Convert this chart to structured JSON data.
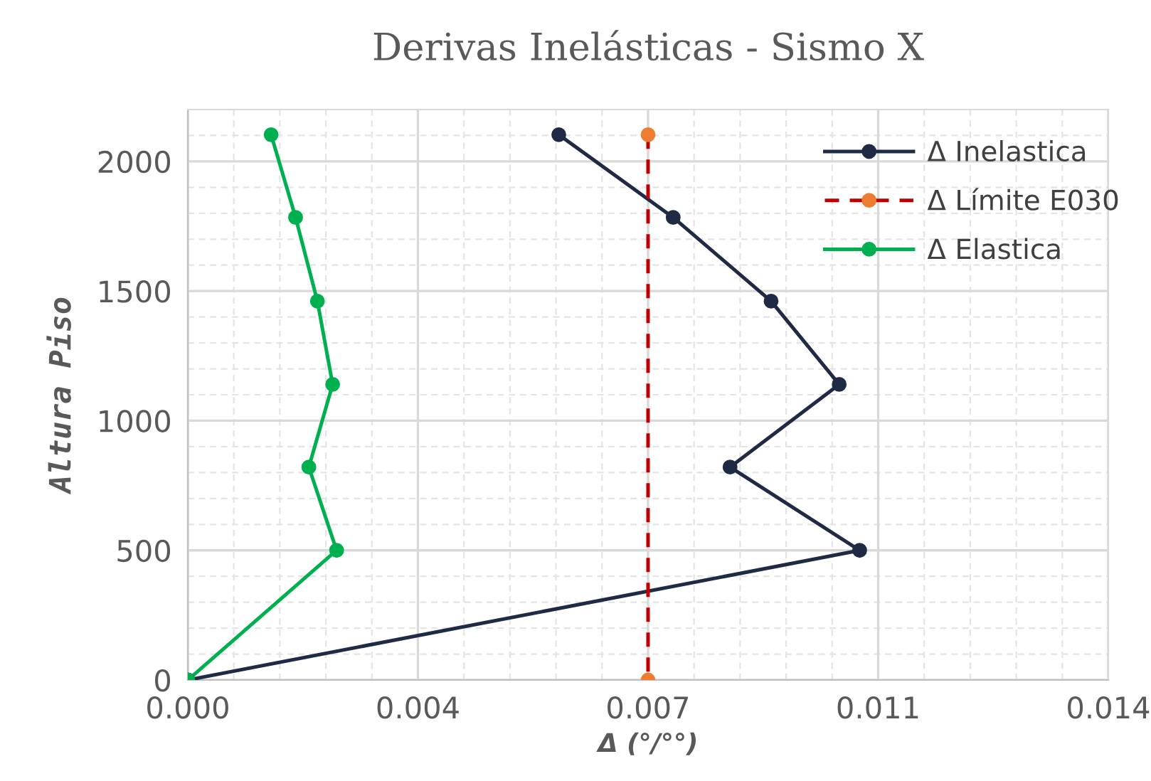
{
  "chart_data": {
    "type": "line",
    "title": "Derivas Inelásticas - Sismo X",
    "xlabel": "Δ (°/°°)",
    "ylabel": "Altura Piso",
    "xlim": [
      0,
      0.014
    ],
    "ylim": [
      0,
      2200
    ],
    "xticks": [
      {
        "value": 0,
        "label": "0.000"
      },
      {
        "value": 0.0035,
        "label": "0.004"
      },
      {
        "value": 0.007,
        "label": "0.007"
      },
      {
        "value": 0.0105,
        "label": "0.011"
      },
      {
        "value": 0.014,
        "label": "0.014"
      }
    ],
    "yticks": [
      0,
      500,
      1000,
      1500,
      2000
    ],
    "grid": true,
    "legend": "top right",
    "marker": "circle",
    "series": [
      {
        "name": "Δ Inelastica",
        "color": "#1f2a44",
        "line_style": "solid",
        "x": [
          0.005642,
          0.007382,
          0.008871,
          0.009907,
          0.008247,
          0.010218,
          0
        ],
        "values": [
          2103,
          1784,
          1461,
          1140,
          821,
          500,
          0
        ]
      },
      {
        "name": "Δ Límite E030",
        "color": "#c00000",
        "line_style": "dashed",
        "x": [
          0.007,
          0.007
        ],
        "values": [
          2103,
          0
        ]
      },
      {
        "name": "Δ Elastica",
        "color": "#00b050",
        "line_style": "solid",
        "x": [
          0.001267,
          0.001639,
          0.001971,
          0.002203,
          0.001841,
          0.002263,
          0
        ],
        "values": [
          2103,
          1784,
          1461,
          1140,
          821,
          500,
          0
        ]
      }
    ]
  }
}
